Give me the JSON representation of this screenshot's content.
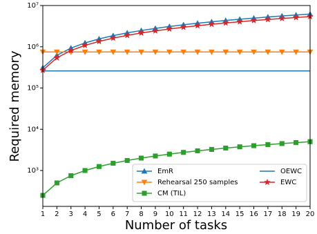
{
  "chart_data": {
    "type": "line",
    "xlabel": "Number of tasks",
    "ylabel": "Required memory",
    "x": [
      1,
      2,
      3,
      4,
      5,
      6,
      7,
      8,
      9,
      10,
      11,
      12,
      13,
      14,
      15,
      16,
      17,
      18,
      19,
      20
    ],
    "xlim": [
      1,
      20
    ],
    "xticks": [
      1,
      2,
      3,
      4,
      5,
      6,
      7,
      8,
      9,
      10,
      11,
      12,
      13,
      14,
      15,
      16,
      17,
      18,
      19,
      20
    ],
    "ylim": [
      135,
      10000000
    ],
    "yscale": "log",
    "yticks": [
      {
        "value": 1000,
        "label": "10³"
      },
      {
        "value": 10000,
        "label": "10⁴"
      },
      {
        "value": 100000,
        "label": "10⁵"
      },
      {
        "value": 1000000,
        "label": "10⁶"
      },
      {
        "value": 10000000,
        "label": "10⁷"
      }
    ],
    "legend": "lower right",
    "series": [
      {
        "name": "EmR",
        "color": "#1f77b4",
        "marker": "triangle-up",
        "values": [
          310000,
          620000,
          930000,
          1240000,
          1550000,
          1860000,
          2170000,
          2480000,
          2790000,
          3100000,
          3410000,
          3720000,
          4030000,
          4340000,
          4650000,
          4960000,
          5270000,
          5580000,
          5890000,
          6200000
        ]
      },
      {
        "name": "Rehearsal 250 samples",
        "color": "#ff7f0e",
        "marker": "triangle-down",
        "values": [
          750000,
          750000,
          750000,
          750000,
          750000,
          750000,
          750000,
          750000,
          750000,
          750000,
          750000,
          750000,
          750000,
          750000,
          750000,
          750000,
          750000,
          750000,
          750000,
          750000
        ]
      },
      {
        "name": "CM (TIL)",
        "color": "#2ca02c",
        "marker": "square",
        "values": [
          250,
          500,
          750,
          1000,
          1250,
          1500,
          1750,
          2000,
          2250,
          2500,
          2750,
          3000,
          3250,
          3500,
          3750,
          4000,
          4250,
          4500,
          4750,
          5000
        ]
      },
      {
        "name": "OEWC",
        "color": "#1f77b4",
        "values": [
          260000,
          260000,
          260000,
          260000,
          260000,
          260000,
          260000,
          260000,
          260000,
          260000,
          260000,
          260000,
          260000,
          260000,
          260000,
          260000,
          260000,
          260000,
          260000,
          260000
        ]
      },
      {
        "name": "EWC",
        "color": "#d62728",
        "marker": "star",
        "values": [
          270000,
          540000,
          810000,
          1080000,
          1350000,
          1620000,
          1890000,
          2160000,
          2430000,
          2700000,
          2970000,
          3240000,
          3510000,
          3780000,
          4050000,
          4320000,
          4590000,
          4860000,
          5130000,
          5400000
        ]
      }
    ]
  }
}
